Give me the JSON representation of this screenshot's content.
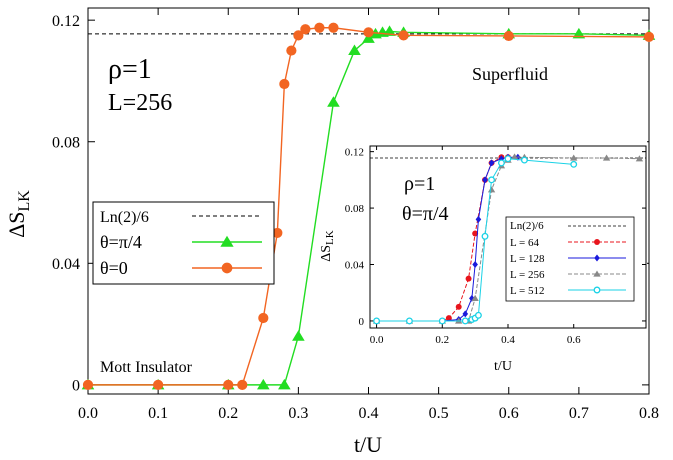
{
  "chart_data": [
    {
      "type": "line",
      "xlabel": "t/U",
      "ylabel": "ΔS",
      "ylabel_sub": "LK",
      "xlim": [
        0.0,
        0.8
      ],
      "ylim": [
        -0.003,
        0.124
      ],
      "xticks": [
        "0.0",
        "0.1",
        "0.2",
        "0.3",
        "0.4",
        "0.5",
        "0.6",
        "0.7",
        "0.8"
      ],
      "yticks": [
        "0",
        "0.04",
        "0.08",
        "0.12"
      ],
      "annotations": {
        "rho": "ρ=1",
        "L": "L=256",
        "superfluid": "Superfluid",
        "mott": "Mott Insulator"
      },
      "legend_position": "center-left",
      "reference": {
        "name": "Ln(2)/6",
        "value": 0.1155
      },
      "series": [
        {
          "name": "θ=π/4",
          "color": "#22dd22",
          "marker": "triangle",
          "x": [
            0.0,
            0.1,
            0.2,
            0.25,
            0.28,
            0.3,
            0.35,
            0.38,
            0.4,
            0.41,
            0.42,
            0.43,
            0.45,
            0.6,
            0.7,
            0.8
          ],
          "y": [
            0.0,
            0.0,
            0.0,
            0.0,
            0.0,
            0.016,
            0.093,
            0.11,
            0.114,
            0.1155,
            0.116,
            0.1163,
            0.116,
            0.1155,
            0.1155,
            0.115
          ]
        },
        {
          "name": "θ=0",
          "color": "#f26522",
          "marker": "circle",
          "x": [
            0.0,
            0.1,
            0.2,
            0.22,
            0.25,
            0.27,
            0.28,
            0.29,
            0.3,
            0.31,
            0.33,
            0.35,
            0.4,
            0.45,
            0.6,
            0.8
          ],
          "y": [
            0.0,
            0.0,
            0.0,
            0.0,
            0.022,
            0.05,
            0.099,
            0.11,
            0.115,
            0.117,
            0.1175,
            0.1175,
            0.116,
            0.115,
            0.1148,
            0.1145
          ]
        }
      ]
    },
    {
      "type": "line",
      "xlabel": "t/U",
      "ylabel": "ΔS",
      "ylabel_sub": "LK",
      "xlim": [
        -0.02,
        0.82
      ],
      "ylim": [
        -0.005,
        0.124
      ],
      "xticks": [
        "0.0",
        "0.2",
        "0.4",
        "0.6"
      ],
      "yticks": [
        "0",
        "0.04",
        "0.08",
        "0.12"
      ],
      "annotations": {
        "rho": "ρ=1",
        "theta": "θ=π/4"
      },
      "legend_position": "right",
      "reference": {
        "name": "Ln(2)/6",
        "value": 0.1155
      },
      "series": [
        {
          "name": "L = 64",
          "color": "#e8141c",
          "marker": "circle-filled",
          "dashed": true,
          "x": [
            0.0,
            0.1,
            0.2,
            0.22,
            0.25,
            0.28,
            0.3,
            0.33,
            0.35,
            0.38,
            0.4
          ],
          "y": [
            0.0,
            0.0,
            0.0,
            0.002,
            0.01,
            0.03,
            0.062,
            0.1,
            0.112,
            0.116,
            0.116
          ]
        },
        {
          "name": "L = 128",
          "color": "#1a1adc",
          "marker": "diamond",
          "dashed": false,
          "x": [
            0.0,
            0.1,
            0.2,
            0.25,
            0.27,
            0.29,
            0.3,
            0.31,
            0.33,
            0.35,
            0.38,
            0.4,
            0.43
          ],
          "y": [
            0.0,
            0.0,
            0.0,
            0.001,
            0.005,
            0.016,
            0.04,
            0.072,
            0.1,
            0.112,
            0.115,
            0.116,
            0.116
          ]
        },
        {
          "name": "L = 256",
          "color": "#888888",
          "marker": "triangle",
          "dashed": true,
          "x": [
            0.0,
            0.1,
            0.2,
            0.25,
            0.28,
            0.3,
            0.35,
            0.38,
            0.4,
            0.42,
            0.45,
            0.6,
            0.7,
            0.8
          ],
          "y": [
            0.0,
            0.0,
            0.0,
            0.0,
            0.0,
            0.016,
            0.093,
            0.11,
            0.114,
            0.1163,
            0.116,
            0.1155,
            0.1155,
            0.115
          ]
        },
        {
          "name": "L = 512",
          "color": "#1ad2e6",
          "marker": "circle-open",
          "dashed": false,
          "x": [
            0.0,
            0.1,
            0.2,
            0.27,
            0.29,
            0.3,
            0.31,
            0.33,
            0.35,
            0.38,
            0.4,
            0.45,
            0.6
          ],
          "y": [
            0.0,
            0.0,
            0.0,
            0.0,
            0.001,
            0.002,
            0.004,
            0.06,
            0.1,
            0.112,
            0.115,
            0.114,
            0.111
          ]
        }
      ]
    }
  ]
}
